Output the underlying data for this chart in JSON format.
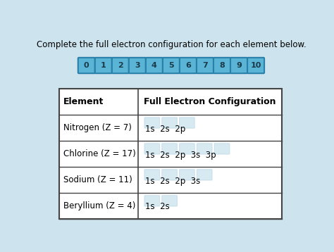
{
  "title": "Complete the full electron configuration for each element below.",
  "background_color": "#cde3ed",
  "buttons": [
    "0",
    "1",
    "2",
    "3",
    "4",
    "5",
    "6",
    "7",
    "8",
    "9",
    "10"
  ],
  "button_color": "#5ab4d6",
  "button_border_color": "#2a7fa8",
  "button_text_color": "#1a3a4a",
  "table_headers": [
    "Element",
    "Full Electron Configuration"
  ],
  "table_rows": [
    [
      "Nitrogen (Z = 7)",
      "1s  2s  2p"
    ],
    [
      "Chlorine (Z = 17)",
      "1s  2s  2p  3s  3p"
    ],
    [
      "Sodium (Z = 11)",
      "1s  2s  2p  3s"
    ],
    [
      "Beryllium (Z = 4)",
      "1s  2s"
    ]
  ],
  "config_parts": [
    [
      "1s",
      "2s",
      "2p"
    ],
    [
      "1s",
      "2s",
      "2p",
      "3s",
      "3p"
    ],
    [
      "1s",
      "2s",
      "2p",
      "3s"
    ],
    [
      "1s",
      "2s"
    ]
  ],
  "border_color": "#444444",
  "title_fontsize": 8.5,
  "header_fontsize": 9,
  "cell_fontsize": 8.5,
  "button_fontsize": 8,
  "watermark_color": "#a8cfe0",
  "watermark_alpha": 0.45
}
